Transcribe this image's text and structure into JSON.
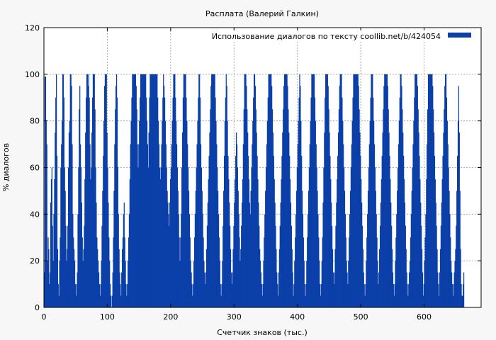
{
  "chart_data": {
    "type": "bar",
    "title": "Расплата (Валерий Галкин)",
    "xlabel": "Счетчик знаков (тыс.)",
    "ylabel": "% диалогов",
    "xlim": [
      0,
      690
    ],
    "ylim": [
      0,
      120
    ],
    "xticks": [
      0,
      100,
      200,
      300,
      400,
      500,
      600
    ],
    "yticks": [
      0,
      20,
      40,
      60,
      80,
      100,
      120
    ],
    "grid": true,
    "legend_position": "top-right",
    "series": [
      {
        "name": "Использование диалогов по тексту  coollib.net/b/424054",
        "color": "#0b3fa8",
        "sampling": "1 value per 1 thousand characters, x = 0..689",
        "values": [
          15,
          99,
          99,
          80,
          70,
          20,
          30,
          25,
          10,
          15,
          45,
          55,
          60,
          35,
          20,
          40,
          55,
          75,
          90,
          100,
          65,
          25,
          10,
          5,
          20,
          30,
          60,
          70,
          80,
          100,
          100,
          90,
          60,
          50,
          35,
          20,
          25,
          35,
          60,
          75,
          80,
          100,
          100,
          95,
          70,
          40,
          30,
          25,
          20,
          10,
          5,
          10,
          15,
          40,
          60,
          85,
          95,
          70,
          60,
          45,
          30,
          20,
          25,
          35,
          55,
          75,
          90,
          100,
          100,
          95,
          100,
          90,
          70,
          55,
          60,
          75,
          90,
          100,
          100,
          100,
          85,
          60,
          45,
          30,
          25,
          20,
          15,
          10,
          5,
          10,
          20,
          35,
          50,
          65,
          80,
          95,
          100,
          100,
          100,
          75,
          60,
          45,
          30,
          20,
          10,
          5,
          0,
          5,
          15,
          30,
          50,
          70,
          85,
          95,
          100,
          90,
          60,
          40,
          25,
          15,
          10,
          5,
          15,
          25,
          30,
          40,
          45,
          30,
          20,
          10,
          5,
          10,
          20,
          30,
          40,
          55,
          70,
          80,
          90,
          100,
          100,
          100,
          100,
          100,
          100,
          95,
          85,
          70,
          60,
          70,
          80,
          90,
          100,
          100,
          100,
          100,
          100,
          100,
          100,
          100,
          100,
          90,
          80,
          70,
          60,
          75,
          90,
          100,
          100,
          100,
          100,
          100,
          100,
          100,
          100,
          100,
          100,
          100,
          100,
          90,
          80,
          70,
          60,
          55,
          60,
          70,
          80,
          90,
          100,
          95,
          90,
          80,
          70,
          60,
          50,
          45,
          40,
          35,
          45,
          55,
          60,
          70,
          80,
          90,
          100,
          100,
          100,
          90,
          80,
          70,
          60,
          50,
          40,
          30,
          20,
          30,
          40,
          60,
          75,
          90,
          100,
          100,
          100,
          100,
          90,
          80,
          70,
          60,
          50,
          40,
          30,
          20,
          15,
          10,
          5,
          10,
          20,
          30,
          40,
          50,
          60,
          70,
          80,
          90,
          100,
          100,
          90,
          70,
          60,
          50,
          40,
          30,
          20,
          15,
          10,
          15,
          25,
          35,
          45,
          55,
          65,
          75,
          85,
          95,
          100,
          100,
          100,
          100,
          100,
          100,
          90,
          80,
          70,
          60,
          50,
          40,
          30,
          20,
          10,
          5,
          10,
          20,
          35,
          50,
          65,
          80,
          90,
          100,
          95,
          80,
          65,
          55,
          45,
          35,
          25,
          15,
          10,
          15,
          25,
          35,
          45,
          55,
          65,
          75,
          70,
          60,
          50,
          40,
          30,
          20,
          25,
          35,
          45,
          55,
          70,
          85,
          100,
          100,
          100,
          95,
          85,
          75,
          65,
          55,
          45,
          40,
          50,
          60,
          70,
          80,
          90,
          100,
          100,
          95,
          85,
          75,
          65,
          55,
          45,
          35,
          25,
          20,
          15,
          10,
          5,
          10,
          20,
          30,
          40,
          50,
          60,
          70,
          80,
          90,
          100,
          100,
          100,
          100,
          100,
          95,
          85,
          75,
          65,
          55,
          45,
          35,
          25,
          15,
          10,
          5,
          15,
          25,
          35,
          45,
          55,
          65,
          75,
          85,
          95,
          100,
          100,
          100,
          100,
          100,
          95,
          85,
          75,
          65,
          55,
          45,
          35,
          25,
          15,
          5,
          10,
          20,
          30,
          40,
          50,
          60,
          70,
          80,
          90,
          100,
          95,
          80,
          65,
          50,
          40,
          30,
          20,
          10,
          5,
          10,
          20,
          30,
          40,
          50,
          60,
          70,
          80,
          90,
          100,
          100,
          100,
          100,
          100,
          90,
          80,
          70,
          60,
          50,
          40,
          30,
          20,
          10,
          5,
          10,
          20,
          30,
          45,
          60,
          75,
          90,
          100,
          100,
          100,
          100,
          95,
          85,
          75,
          65,
          55,
          45,
          35,
          25,
          15,
          10,
          15,
          25,
          35,
          45,
          55,
          65,
          75,
          85,
          95,
          100,
          100,
          100,
          90,
          80,
          70,
          60,
          50,
          40,
          30,
          20,
          15,
          10,
          20,
          30,
          40,
          50,
          60,
          70,
          80,
          90,
          100,
          100,
          100,
          100,
          100,
          100,
          100,
          100,
          95,
          85,
          75,
          65,
          55,
          45,
          35,
          25,
          15,
          10,
          5,
          10,
          20,
          30,
          40,
          50,
          60,
          70,
          80,
          90,
          100,
          100,
          100,
          90,
          80,
          70,
          60,
          50,
          40,
          30,
          20,
          10,
          15,
          25,
          35,
          45,
          55,
          65,
          75,
          85,
          95,
          100,
          100,
          100,
          100,
          100,
          95,
          85,
          75,
          65,
          55,
          45,
          35,
          25,
          15,
          10,
          5,
          10,
          20,
          30,
          40,
          50,
          60,
          70,
          80,
          90,
          100,
          100,
          95,
          85,
          75,
          65,
          55,
          45,
          35,
          25,
          15,
          10,
          5,
          10,
          15,
          20,
          30,
          40,
          50,
          60,
          70,
          80,
          90,
          100,
          100,
          100,
          100,
          95,
          85,
          75,
          65,
          55,
          45,
          35,
          25,
          15,
          5,
          10,
          20,
          30,
          40,
          55,
          70,
          85,
          100,
          100,
          100,
          100,
          100,
          100,
          100,
          95,
          85,
          75,
          65,
          55,
          45,
          35,
          25,
          15,
          10,
          5,
          15,
          25,
          35,
          45,
          55,
          65,
          75,
          85,
          95,
          100,
          100,
          90,
          80,
          70,
          60,
          50,
          40,
          30,
          20,
          15,
          10,
          5,
          10,
          15,
          20,
          25,
          35,
          50,
          65,
          80,
          95,
          75,
          50,
          25,
          10,
          5,
          5,
          10,
          15
        ]
      }
    ]
  }
}
